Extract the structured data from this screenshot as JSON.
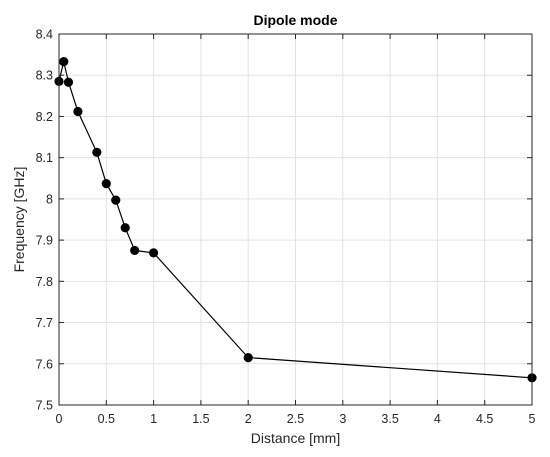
{
  "chart_data": {
    "type": "line",
    "title": "Dipole mode",
    "xlabel": "Distance [mm]",
    "ylabel": "Frequency [GHz]",
    "xlim": [
      0,
      5
    ],
    "ylim": [
      7.5,
      8.4
    ],
    "xticks": [
      "0",
      "0.5",
      "1",
      "1.5",
      "2",
      "2.5",
      "3",
      "3.5",
      "4",
      "4.5",
      "5"
    ],
    "yticks": [
      "7.5",
      "7.6",
      "7.7",
      "7.8",
      "7.9",
      "8",
      "8.1",
      "8.2",
      "8.3",
      "8.4"
    ],
    "grid": true,
    "series": [
      {
        "color": "#000000",
        "marker": "circle",
        "x": [
          0,
          0.05,
          0.1,
          0.2,
          0.4,
          0.5,
          0.6,
          0.7,
          0.8,
          1,
          2,
          5
        ],
        "y": [
          8.285,
          8.333,
          8.283,
          8.212,
          8.113,
          8.037,
          7.997,
          7.93,
          7.875,
          7.869,
          7.615,
          7.566
        ]
      }
    ]
  }
}
